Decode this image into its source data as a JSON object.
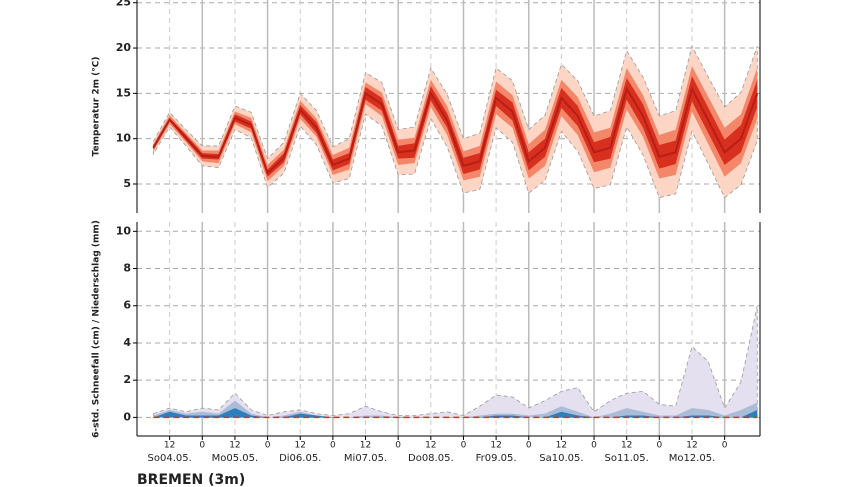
{
  "chart_data": [
    {
      "type": "band",
      "ylabel": "Temperatur 2m (°C)",
      "x": [
        6,
        12,
        18,
        24,
        30,
        36,
        42,
        48,
        54,
        60,
        66,
        72,
        78,
        84,
        90,
        96,
        102,
        108,
        114,
        120,
        126,
        132,
        138,
        144,
        150,
        156,
        162,
        168,
        174,
        180,
        186,
        192,
        198,
        204,
        210,
        216,
        222,
        228
      ],
      "xlim": [
        0,
        229
      ],
      "ylim": [
        1.8,
        25.3
      ],
      "yticks": [
        5,
        10,
        15,
        20,
        25
      ],
      "grid": true,
      "bands": [
        {
          "color": "#fcd5c4",
          "low": [
            8.3,
            11.3,
            9.2,
            7.0,
            6.8,
            11.0,
            10.1,
            4.6,
            6.2,
            11.4,
            9.3,
            5.1,
            5.6,
            12.7,
            11.4,
            6.0,
            6.1,
            12.2,
            9.1,
            4.0,
            4.4,
            11.2,
            9.6,
            4.0,
            5.4,
            10.8,
            8.6,
            4.5,
            4.9,
            11.3,
            8.2,
            3.5,
            3.9,
            10.8,
            7.2,
            3.5,
            4.9,
            9.8
          ],
          "high": [
            9.7,
            12.9,
            11.0,
            9.2,
            9.2,
            13.6,
            12.9,
            7.8,
            9.6,
            15.0,
            13.1,
            9.1,
            10.0,
            17.3,
            16.2,
            11.0,
            11.3,
            17.8,
            14.9,
            10.0,
            10.6,
            17.8,
            16.4,
            11.0,
            12.6,
            18.2,
            16.4,
            12.5,
            13.1,
            19.7,
            16.8,
            12.5,
            13.1,
            20.2,
            16.8,
            13.5,
            15.1,
            20.2
          ]
        },
        {
          "color": "#f4876a",
          "low": [
            8.6,
            11.6,
            9.6,
            7.5,
            7.3,
            11.6,
            10.7,
            5.3,
            7.0,
            12.2,
            10.2,
            6.0,
            6.6,
            13.8,
            12.5,
            7.1,
            7.3,
            13.5,
            10.4,
            5.4,
            5.8,
            12.7,
            11.2,
            5.6,
            7.0,
            12.5,
            10.4,
            6.3,
            6.8,
            13.2,
            10.2,
            5.6,
            6.0,
            13.0,
            9.4,
            5.8,
            7.3,
            12.2
          ],
          "high": [
            9.4,
            12.6,
            10.6,
            8.7,
            8.7,
            13.0,
            12.3,
            7.1,
            8.8,
            14.2,
            12.2,
            8.2,
            9.0,
            16.2,
            15.1,
            9.9,
            10.1,
            16.5,
            13.6,
            8.6,
            9.2,
            16.3,
            14.8,
            9.4,
            11.0,
            16.5,
            14.6,
            10.7,
            11.2,
            17.8,
            14.8,
            10.4,
            11.0,
            18.0,
            14.6,
            11.2,
            12.7,
            17.8
          ]
        },
        {
          "color": "#d7301f",
          "low": [
            8.8,
            11.9,
            9.8,
            7.8,
            7.7,
            11.9,
            11.1,
            5.8,
            7.4,
            12.7,
            10.6,
            6.5,
            7.2,
            14.3,
            13.1,
            7.8,
            7.9,
            14.2,
            11.2,
            6.1,
            6.6,
            13.6,
            12.0,
            6.5,
            8.0,
            13.4,
            11.4,
            7.4,
            7.8,
            14.3,
            11.2,
            6.7,
            7.2,
            14.1,
            10.6,
            7.1,
            8.5,
            13.5
          ],
          "high": [
            9.2,
            12.3,
            10.4,
            8.4,
            8.3,
            12.7,
            11.9,
            6.6,
            8.4,
            13.7,
            11.8,
            7.7,
            8.4,
            15.7,
            14.5,
            9.2,
            9.5,
            15.8,
            12.8,
            7.9,
            8.4,
            15.4,
            14.0,
            8.5,
            10.0,
            15.6,
            13.6,
            9.6,
            10.2,
            16.7,
            13.8,
            9.3,
            9.8,
            16.9,
            13.4,
            9.9,
            11.5,
            16.5
          ]
        }
      ],
      "series": [
        {
          "color": "#b81d16",
          "values": [
            9.0,
            12.1,
            10.1,
            8.1,
            8.0,
            12.3,
            11.5,
            6.2,
            7.9,
            13.2,
            11.2,
            7.1,
            7.8,
            15.0,
            13.8,
            8.5,
            8.7,
            15.0,
            12.0,
            7.0,
            7.5,
            14.5,
            13.0,
            7.5,
            9.0,
            14.5,
            12.5,
            8.5,
            9.0,
            15.5,
            12.5,
            8.0,
            8.5,
            15.5,
            12.0,
            8.5,
            10.0,
            15.0
          ]
        }
      ]
    },
    {
      "type": "area",
      "ylabel": "6-std. Schneefall (cm) / Niederschlag (mm)",
      "x": [
        6,
        12,
        18,
        24,
        30,
        36,
        42,
        48,
        54,
        60,
        66,
        72,
        78,
        84,
        90,
        96,
        102,
        108,
        114,
        120,
        126,
        132,
        138,
        144,
        150,
        156,
        162,
        168,
        174,
        180,
        186,
        192,
        198,
        204,
        210,
        216,
        222,
        228
      ],
      "xlim": [
        0,
        229
      ],
      "ylim": [
        -1.0,
        10.5
      ],
      "yticks": [
        0,
        2,
        4,
        6,
        8,
        10
      ],
      "grid": true,
      "series": [
        {
          "color": "#e4e0ef",
          "values": [
            0.2,
            0.5,
            0.3,
            0.5,
            0.4,
            1.3,
            0.4,
            0.1,
            0.3,
            0.4,
            0.2,
            0.1,
            0.2,
            0.6,
            0.3,
            0.1,
            0.1,
            0.2,
            0.3,
            0.1,
            0.6,
            1.2,
            1.1,
            0.5,
            0.9,
            1.4,
            1.6,
            0.3,
            0.9,
            1.3,
            1.4,
            0.7,
            0.6,
            3.8,
            3.0,
            0.5,
            1.9,
            6.0
          ]
        },
        {
          "color": "#a9bcd8",
          "values": [
            0.1,
            0.4,
            0.2,
            0.3,
            0.2,
            0.9,
            0.2,
            0,
            0.1,
            0.3,
            0.1,
            0,
            0,
            0.1,
            0.1,
            0,
            0,
            0,
            0,
            0,
            0.1,
            0.2,
            0.2,
            0.1,
            0.2,
            0.6,
            0.3,
            0,
            0.2,
            0.5,
            0.3,
            0.1,
            0.1,
            0.5,
            0.4,
            0.1,
            0.4,
            0.8
          ]
        },
        {
          "color": "#2f7fbd",
          "values": [
            0,
            0.3,
            0.1,
            0.1,
            0.1,
            0.5,
            0.1,
            0,
            0,
            0.2,
            0.1,
            0,
            0,
            0,
            0,
            0,
            0,
            0,
            0,
            0,
            0,
            0.1,
            0.1,
            0,
            0,
            0.3,
            0.1,
            0,
            0,
            0.1,
            0.1,
            0,
            0,
            0.1,
            0.1,
            0,
            0,
            0.4
          ]
        }
      ],
      "median": {
        "color": "#d7301f",
        "values": [
          0,
          0,
          0,
          0,
          0,
          0,
          0,
          0,
          0,
          0,
          0,
          0,
          0,
          0,
          0,
          0,
          0,
          0,
          0,
          0,
          0,
          0,
          0,
          0,
          0,
          0,
          0,
          0,
          0,
          0,
          0,
          0,
          0,
          0,
          0,
          0,
          0,
          0
        ]
      },
      "xticks": [
        12,
        {
          "value": 24,
          "label": "0"
        },
        {
          "value": 36,
          "label": "12"
        },
        {
          "value": 48,
          "label": "0"
        },
        {
          "value": 60,
          "label": "12"
        },
        {
          "value": 72,
          "label": "0"
        },
        {
          "value": 84,
          "label": "12"
        },
        {
          "value": 96,
          "label": "0"
        },
        {
          "value": 108,
          "label": "12"
        },
        {
          "value": 120,
          "label": "0"
        },
        {
          "value": 132,
          "label": "12"
        },
        {
          "value": 144,
          "label": "0"
        },
        {
          "value": 156,
          "label": "12"
        },
        {
          "value": 168,
          "label": "0"
        },
        {
          "value": 180,
          "label": "12"
        },
        {
          "value": 192,
          "label": "0"
        },
        {
          "value": 204,
          "label": "12"
        },
        {
          "value": 216,
          "label": "0"
        }
      ],
      "day_labels": [
        {
          "value": 12,
          "label": "So04.05."
        },
        {
          "value": 36,
          "label": "Mo05.05."
        },
        {
          "value": 60,
          "label": "Di06.05."
        },
        {
          "value": 84,
          "label": "Mi07.05."
        },
        {
          "value": 108,
          "label": "Do08.05."
        },
        {
          "value": 132,
          "label": "Fr09.05."
        },
        {
          "value": 156,
          "label": "Sa10.05."
        },
        {
          "value": 180,
          "label": "So11.05."
        },
        {
          "value": 204,
          "label": "Mo12.05."
        }
      ]
    }
  ],
  "footer": "BREMEN (3m)"
}
